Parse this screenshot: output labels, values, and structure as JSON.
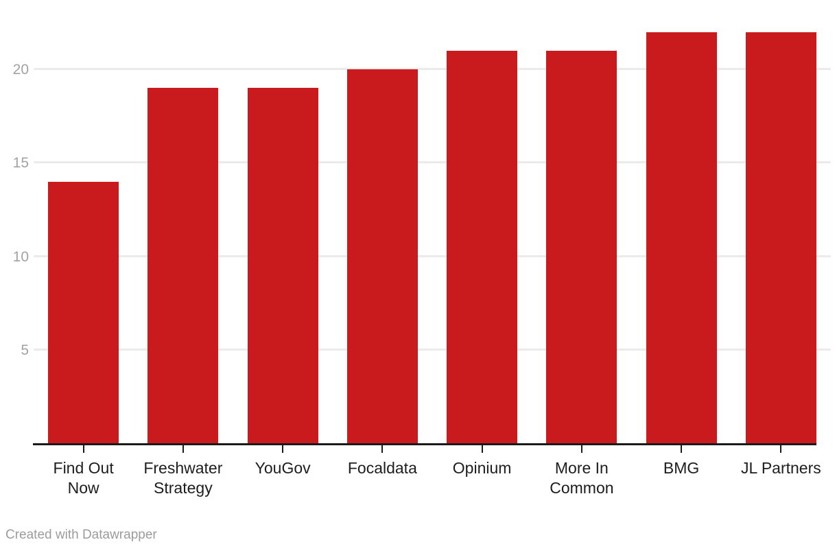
{
  "chart_data": {
    "type": "bar",
    "categories": [
      "Find Out Now",
      "Freshwater Strategy",
      "YouGov",
      "Focaldata",
      "Opinium",
      "More In Common",
      "BMG",
      "JL Partners"
    ],
    "categories_display": [
      "Find Out\nNow",
      "Freshwater\nStrategy",
      "YouGov",
      "Focaldata",
      "Opinium",
      "More In\nCommon",
      "BMG",
      "JL Partners"
    ],
    "values": [
      14,
      19,
      19,
      20,
      21,
      21,
      22,
      22
    ],
    "title": "",
    "xlabel": "",
    "ylabel": "",
    "ylim": [
      0,
      22
    ],
    "yticks": [
      5,
      10,
      15,
      20
    ],
    "grid": true,
    "legend": "none"
  },
  "colors": {
    "bar": "#c91a1d",
    "gridline": "#ebebeb",
    "axis": "#1a1a1a",
    "y_tick_label": "#a2a2a2",
    "x_tick_label": "#1d1d1e",
    "footer": "#9c9c9c",
    "background": "#ffffff"
  },
  "footer": {
    "text": "Created with Datawrapper"
  }
}
